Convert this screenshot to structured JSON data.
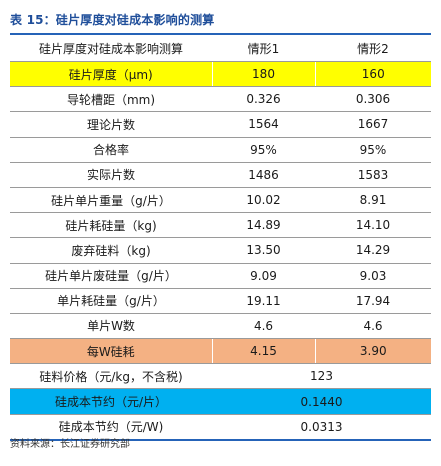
{
  "title": "表 15：硅片厚度对硅成本影响的测算",
  "header": [
    "硅片厚度对硅成本影响测算",
    "情形1",
    "情形2"
  ],
  "rows": [
    {
      "label": "硅片厚度（μm)",
      "v1": "180",
      "v2": "160",
      "style": "yellow"
    },
    {
      "label": "导轮槽距（mm)",
      "v1": "0.326",
      "v2": "0.306",
      "style": ""
    },
    {
      "label": "理论片数",
      "v1": "1564",
      "v2": "1667",
      "style": ""
    },
    {
      "label": "合格率",
      "v1": "95%",
      "v2": "95%",
      "style": ""
    },
    {
      "label": "实际片数",
      "v1": "1486",
      "v2": "1583",
      "style": ""
    },
    {
      "label": "硅片单片重量（g/片）",
      "v1": "10.02",
      "v2": "8.91",
      "style": ""
    },
    {
      "label": "硅片耗硅量（kg)",
      "v1": "14.89",
      "v2": "14.10",
      "style": ""
    },
    {
      "label": "废弃硅料（kg)",
      "v1": "13.50",
      "v2": "14.29",
      "style": ""
    },
    {
      "label": "硅片单片废硅量（g/片）",
      "v1": "9.09",
      "v2": "9.03",
      "style": ""
    },
    {
      "label": "单片耗硅量（g/片）",
      "v1": "19.11",
      "v2": "17.94",
      "style": ""
    },
    {
      "label": "单片W数",
      "v1": "4.6",
      "v2": "4.6",
      "style": ""
    },
    {
      "label": "每W硅耗",
      "v1": "4.15",
      "v2": "3.90",
      "style": "orange"
    }
  ],
  "merged_rows": [
    {
      "label": "硅料价格（元/kg，不含税)",
      "value": "123",
      "style": ""
    },
    {
      "label": "硅成本节约（元/片）",
      "value": "0.1440",
      "style": "blue"
    },
    {
      "label": "硅成本节约（元/W)",
      "value": "0.0313",
      "style": ""
    }
  ],
  "source": "资料来源：长江证券研究部",
  "colors": {
    "title": "#1f4e9a",
    "highlight_yellow": "#ffff00",
    "highlight_orange": "#f4b183",
    "highlight_blue": "#00b0f0",
    "rule": "#2563b8"
  }
}
